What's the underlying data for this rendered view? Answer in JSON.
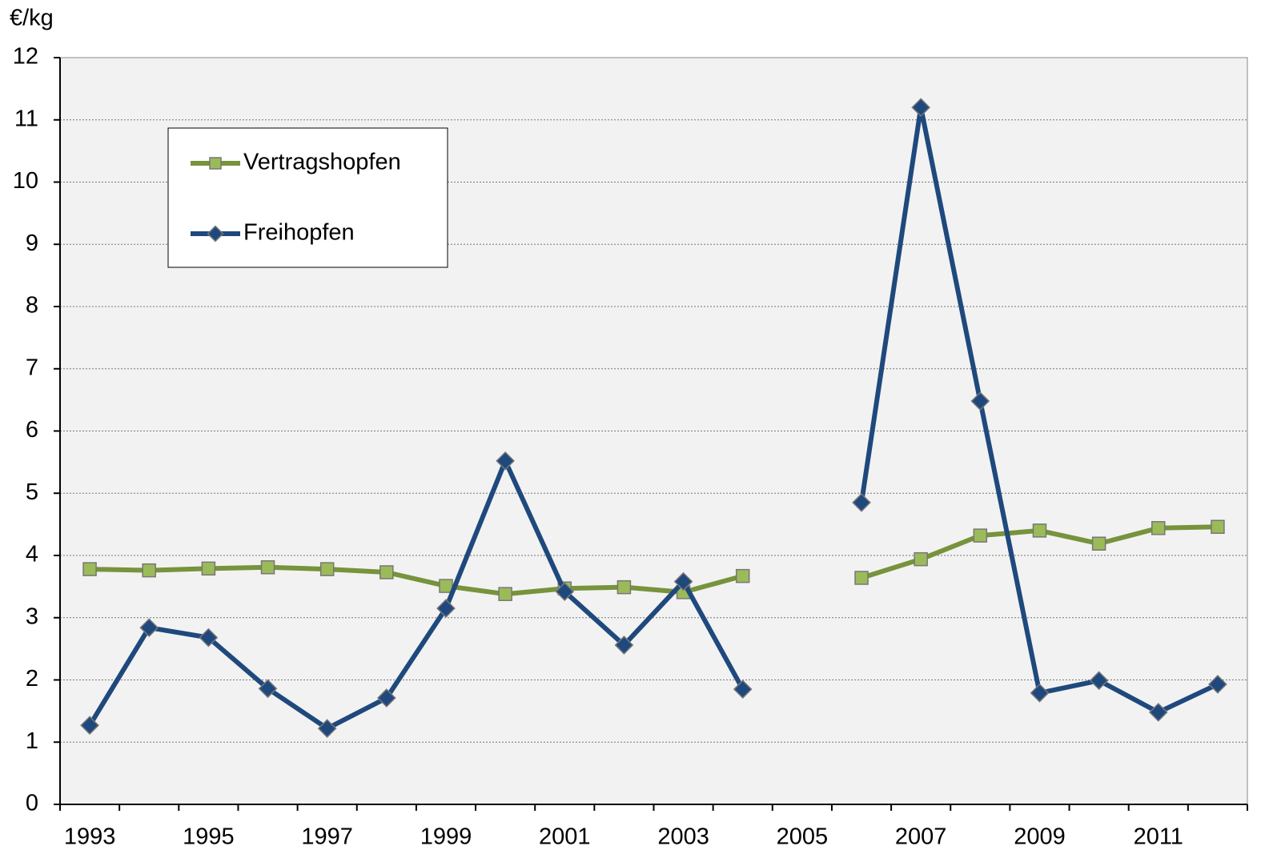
{
  "chart_data": {
    "type": "line",
    "y_label": "€/kg",
    "categories": [
      "1993",
      null,
      "1995",
      null,
      "1997",
      null,
      "1999",
      null,
      "2001",
      null,
      "2003",
      null,
      "2005",
      null,
      "2007",
      null,
      "2009",
      null,
      "2011",
      null
    ],
    "series": [
      {
        "name": "Vertragshopfen",
        "color": "#77933c",
        "marker": "square",
        "marker_color": "#9bbb59",
        "values": [
          3.78,
          3.76,
          3.79,
          3.81,
          3.78,
          3.73,
          3.51,
          3.38,
          3.47,
          3.49,
          3.41,
          3.67,
          null,
          3.64,
          3.94,
          4.32,
          4.4,
          4.19,
          4.44,
          4.46
        ]
      },
      {
        "name": "Freihopfen",
        "color": "#1f497d",
        "marker": "diamond",
        "marker_color": "#1f497d",
        "values": [
          1.27,
          2.84,
          2.68,
          1.86,
          1.22,
          1.71,
          3.15,
          5.52,
          3.42,
          2.56,
          3.58,
          1.85,
          null,
          4.85,
          11.2,
          6.48,
          1.79,
          1.99,
          1.48,
          1.93
        ]
      }
    ],
    "ylim": [
      0,
      12
    ],
    "yticks": [
      0,
      1,
      2,
      3,
      4,
      5,
      6,
      7,
      8,
      9,
      10,
      11,
      12
    ],
    "grid": true,
    "legend": "upper left"
  }
}
